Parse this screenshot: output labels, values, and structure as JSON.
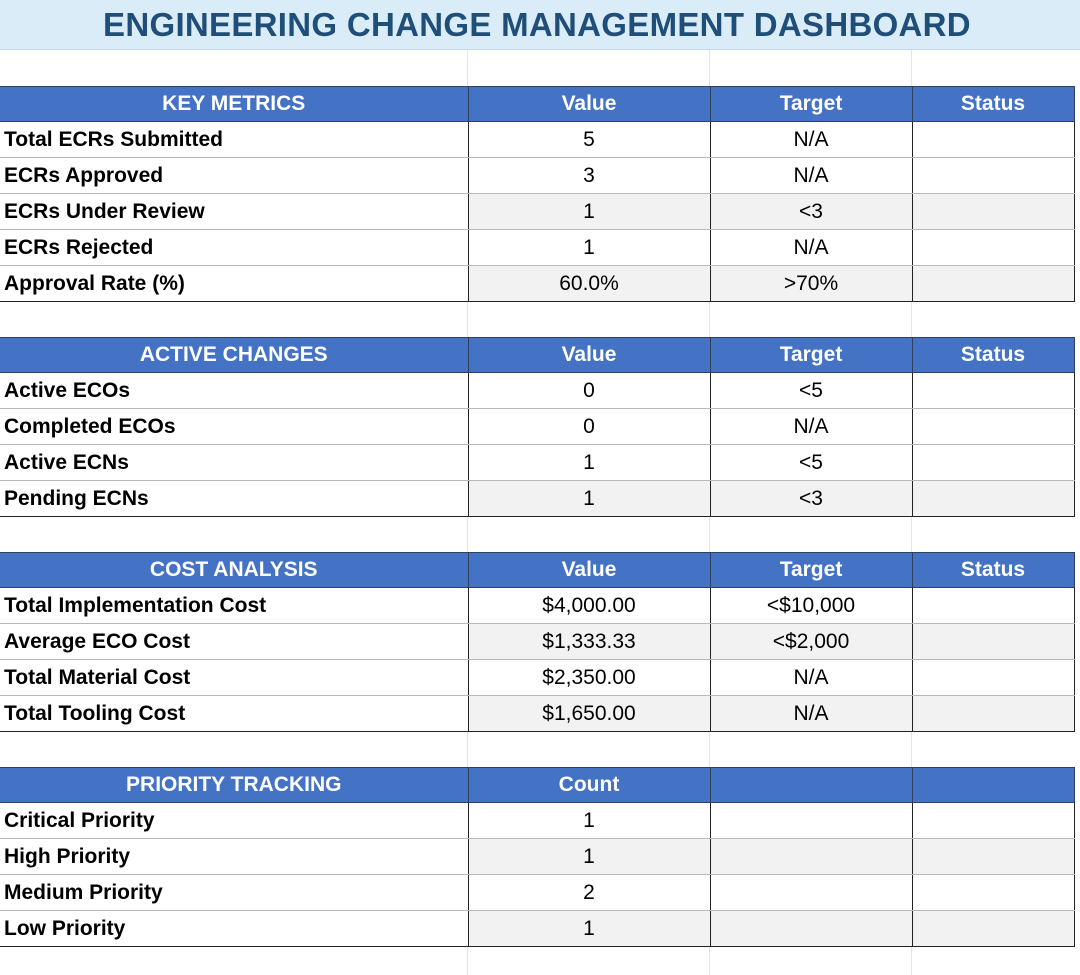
{
  "title": "ENGINEERING CHANGE MANAGEMENT DASHBOARD",
  "sections": [
    {
      "header": [
        "KEY METRICS",
        "Value",
        "Target",
        "Status"
      ],
      "rows": [
        {
          "label": "Total ECRs Submitted",
          "value": "5",
          "target": "N/A",
          "status": ""
        },
        {
          "label": "ECRs Approved",
          "value": "3",
          "target": "N/A",
          "status": ""
        },
        {
          "label": "ECRs Under Review",
          "value": "1",
          "target": "<3",
          "status": ""
        },
        {
          "label": "ECRs Rejected",
          "value": "1",
          "target": "N/A",
          "status": ""
        },
        {
          "label": "Approval Rate (%)",
          "value": "60.0%",
          "target": ">70%",
          "status": ""
        }
      ]
    },
    {
      "header": [
        "ACTIVE CHANGES",
        "Value",
        "Target",
        "Status"
      ],
      "rows": [
        {
          "label": "Active ECOs",
          "value": "0",
          "target": "<5",
          "status": ""
        },
        {
          "label": "Completed ECOs",
          "value": "0",
          "target": "N/A",
          "status": ""
        },
        {
          "label": "Active ECNs",
          "value": "1",
          "target": "<5",
          "status": ""
        },
        {
          "label": "Pending ECNs",
          "value": "1",
          "target": "<3",
          "status": ""
        }
      ]
    },
    {
      "header": [
        "COST ANALYSIS",
        "Value",
        "Target",
        "Status"
      ],
      "rows": [
        {
          "label": "Total Implementation Cost",
          "value": "$4,000.00",
          "target": "<$10,000",
          "status": ""
        },
        {
          "label": "Average ECO Cost",
          "value": "$1,333.33",
          "target": "<$2,000",
          "status": ""
        },
        {
          "label": "Total Material Cost",
          "value": "$2,350.00",
          "target": "N/A",
          "status": ""
        },
        {
          "label": "Total Tooling Cost",
          "value": "$1,650.00",
          "target": "N/A",
          "status": ""
        }
      ]
    },
    {
      "header": [
        "PRIORITY TRACKING",
        "Count",
        "",
        ""
      ],
      "rows": [
        {
          "label": "Critical Priority",
          "value": "1",
          "target": "",
          "status": ""
        },
        {
          "label": "High Priority",
          "value": "1",
          "target": "",
          "status": ""
        },
        {
          "label": "Medium Priority",
          "value": "2",
          "target": "",
          "status": ""
        },
        {
          "label": "Low Priority",
          "value": "1",
          "target": "",
          "status": ""
        }
      ]
    }
  ]
}
